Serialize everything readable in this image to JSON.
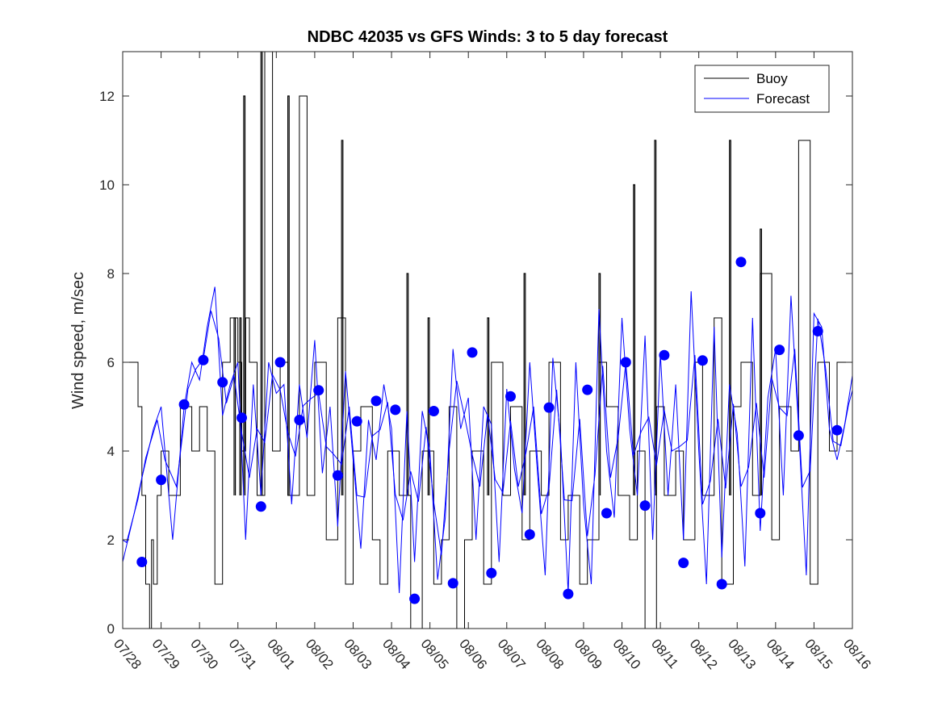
{
  "chart_data": {
    "type": "line",
    "title": "NDBC 42035 vs GFS Winds: 3 to 5 day forecast",
    "xlabel": "",
    "ylabel": "Wind speed, m/sec",
    "xlim": [
      0,
      19
    ],
    "ylim": [
      0,
      13
    ],
    "x_tick_labels": [
      "07/28",
      "07/29",
      "07/30",
      "07/31",
      "08/01",
      "08/02",
      "08/03",
      "08/04",
      "08/05",
      "08/06",
      "08/07",
      "08/08",
      "08/09",
      "08/10",
      "08/11",
      "08/12",
      "08/13",
      "08/14",
      "08/15",
      "08/16"
    ],
    "y_ticks": [
      0,
      2,
      4,
      6,
      8,
      10,
      12
    ],
    "legend": {
      "location": "top-right",
      "entries": [
        "Buoy",
        "Forecast"
      ]
    },
    "colors": {
      "buoy": "#000000",
      "forecast": "#0000ff",
      "axis": "#262626"
    },
    "series": [
      {
        "name": "Buoy",
        "style": "step",
        "x": [
          -0.5,
          0.2,
          0.4,
          0.5,
          0.6,
          0.7,
          0.75,
          0.8,
          0.9,
          1.0,
          1.2,
          1.5,
          1.8,
          2.0,
          2.2,
          2.4,
          2.6,
          2.8,
          3.0,
          3.1,
          3.2,
          3.3,
          3.5,
          3.7,
          3.9,
          4.1,
          4.3,
          4.6,
          4.8,
          5.0,
          5.3,
          5.6,
          5.8,
          6.0,
          6.2,
          6.5,
          6.7,
          6.9,
          7.2,
          7.5,
          7.8,
          8.1,
          8.3,
          8.5,
          8.7,
          8.9,
          9.1,
          9.4,
          9.6,
          9.9,
          10.1,
          10.4,
          10.6,
          10.9,
          11.1,
          11.4,
          11.6,
          11.9,
          12.1,
          12.4,
          12.6,
          12.9,
          13.2,
          13.4,
          13.6,
          13.9,
          14.1,
          14.4,
          14.6,
          14.9,
          15.1,
          15.4,
          15.6,
          15.9,
          16.1,
          16.4,
          16.6,
          16.9,
          17.1,
          17.4,
          17.6,
          17.9,
          18.1,
          18.4,
          18.6,
          19.0
        ],
        "y": [
          6,
          6,
          5,
          3,
          1,
          0,
          2,
          1,
          3,
          4,
          3,
          5,
          4,
          5,
          4,
          1,
          6,
          7,
          6,
          4,
          7,
          6,
          3,
          13,
          4,
          6,
          3,
          12,
          3,
          6,
          2,
          7,
          1,
          4,
          5,
          2,
          1,
          4,
          3,
          0,
          4,
          1,
          2,
          5,
          0,
          2,
          4,
          1,
          6,
          3,
          5,
          2,
          4,
          3,
          6,
          2,
          3,
          1,
          2,
          6,
          5,
          3,
          2,
          4,
          0,
          5,
          3,
          4,
          2,
          6,
          3,
          7,
          1,
          5,
          6,
          3,
          8,
          2,
          5,
          4,
          11,
          1,
          6,
          4,
          6,
          2
        ],
        "spikes": [
          {
            "x": 2.9,
            "y": 7
          },
          {
            "x": 3.05,
            "y": 7
          },
          {
            "x": 3.15,
            "y": 12
          },
          {
            "x": 3.6,
            "y": 13
          },
          {
            "x": 4.3,
            "y": 12
          },
          {
            "x": 5.7,
            "y": 11
          },
          {
            "x": 7.4,
            "y": 8
          },
          {
            "x": 7.95,
            "y": 7
          },
          {
            "x": 9.5,
            "y": 7
          },
          {
            "x": 10.45,
            "y": 8
          },
          {
            "x": 12.4,
            "y": 8
          },
          {
            "x": 13.3,
            "y": 10
          },
          {
            "x": 13.85,
            "y": 11
          },
          {
            "x": 15.8,
            "y": 11
          },
          {
            "x": 16.6,
            "y": 9
          }
        ]
      },
      {
        "name": "Forecast",
        "style": "line",
        "x": [
          -0.3,
          0.0,
          0.3,
          0.5,
          0.8,
          1.0,
          1.3,
          1.6,
          1.8,
          2.0,
          2.2,
          2.4,
          2.6,
          2.8,
          3.0,
          3.2,
          3.4,
          3.6,
          3.8,
          4.0,
          4.2,
          4.4,
          4.6,
          4.8,
          5.0,
          5.2,
          5.4,
          5.6,
          5.8,
          6.0,
          6.2,
          6.4,
          6.6,
          6.8,
          7.0,
          7.2,
          7.4,
          7.6,
          7.8,
          8.0,
          8.2,
          8.4,
          8.6,
          8.8,
          9.0,
          9.2,
          9.4,
          9.6,
          9.8,
          10.0,
          10.2,
          10.4,
          10.6,
          10.8,
          11.0,
          11.2,
          11.4,
          11.6,
          11.8,
          12.0,
          12.2,
          12.4,
          12.6,
          12.8,
          13.0,
          13.2,
          13.4,
          13.6,
          13.8,
          14.0,
          14.2,
          14.4,
          14.6,
          14.8,
          15.0,
          15.2,
          15.4,
          15.6,
          15.8,
          16.0,
          16.2,
          16.4,
          16.6,
          16.8,
          17.0,
          17.2,
          17.4,
          17.6,
          17.8,
          18.0,
          18.2,
          18.4,
          18.6,
          18.8,
          19.0
        ],
        "y": [
          2.5,
          1.5,
          2.6,
          3.4,
          4.5,
          5.0,
          2.0,
          5.0,
          6.0,
          5.6,
          6.8,
          7.7,
          4.8,
          5.5,
          6.0,
          2.0,
          5.5,
          3.0,
          6.0,
          5.3,
          5.5,
          2.8,
          5.5,
          4.3,
          6.5,
          3.5,
          5.0,
          2.3,
          5.8,
          3.8,
          1.8,
          4.7,
          3.8,
          5.5,
          4.5,
          0.8,
          4.9,
          1.5,
          4.9,
          4.0,
          1.1,
          2.5,
          6.3,
          4.5,
          5.2,
          2.0,
          5.0,
          4.6,
          1.5,
          5.4,
          3.6,
          2.6,
          6.0,
          3.5,
          1.2,
          6.1,
          4.3,
          0.8,
          6.0,
          2.8,
          1.0,
          7.2,
          4.0,
          2.5,
          7.0,
          4.5,
          3.0,
          6.6,
          2.0,
          6.2,
          3.0,
          5.5,
          2.0,
          7.6,
          4.0,
          1.0,
          6.8,
          1.6,
          5.5,
          4.4,
          1.4,
          7.0,
          2.2,
          5.2,
          6.3,
          3.0,
          7.5,
          4.5,
          1.2,
          7.1,
          6.8,
          4.5,
          3.8,
          4.6,
          5.7
        ],
        "markers": [
          {
            "x": 0.5,
            "y": 1.5
          },
          {
            "x": 1.0,
            "y": 3.35
          },
          {
            "x": 1.6,
            "y": 5.05
          },
          {
            "x": 2.1,
            "y": 6.05
          },
          {
            "x": 2.6,
            "y": 5.55
          },
          {
            "x": 3.1,
            "y": 4.75
          },
          {
            "x": 3.6,
            "y": 2.75
          },
          {
            "x": 4.1,
            "y": 6.0
          },
          {
            "x": 4.6,
            "y": 4.7
          },
          {
            "x": 5.1,
            "y": 5.37
          },
          {
            "x": 5.6,
            "y": 3.45
          },
          {
            "x": 6.1,
            "y": 4.67
          },
          {
            "x": 6.6,
            "y": 5.13
          },
          {
            "x": 7.1,
            "y": 4.93
          },
          {
            "x": 7.6,
            "y": 0.67
          },
          {
            "x": 8.1,
            "y": 4.9
          },
          {
            "x": 8.6,
            "y": 1.02
          },
          {
            "x": 9.1,
            "y": 6.22
          },
          {
            "x": 9.6,
            "y": 1.25
          },
          {
            "x": 10.1,
            "y": 5.23
          },
          {
            "x": 10.6,
            "y": 2.12
          },
          {
            "x": 11.1,
            "y": 4.98
          },
          {
            "x": 11.6,
            "y": 0.78
          },
          {
            "x": 12.1,
            "y": 5.38
          },
          {
            "x": 12.6,
            "y": 2.6
          },
          {
            "x": 13.1,
            "y": 6.0
          },
          {
            "x": 13.6,
            "y": 2.77
          },
          {
            "x": 14.1,
            "y": 6.16
          },
          {
            "x": 14.6,
            "y": 1.48
          },
          {
            "x": 15.1,
            "y": 6.04
          },
          {
            "x": 15.6,
            "y": 1.0
          },
          {
            "x": 16.1,
            "y": 8.26
          },
          {
            "x": 16.6,
            "y": 2.6
          },
          {
            "x": 17.1,
            "y": 6.28
          },
          {
            "x": 17.6,
            "y": 4.35
          },
          {
            "x": 18.1,
            "y": 6.7
          },
          {
            "x": 18.6,
            "y": 4.47
          }
        ]
      }
    ]
  }
}
